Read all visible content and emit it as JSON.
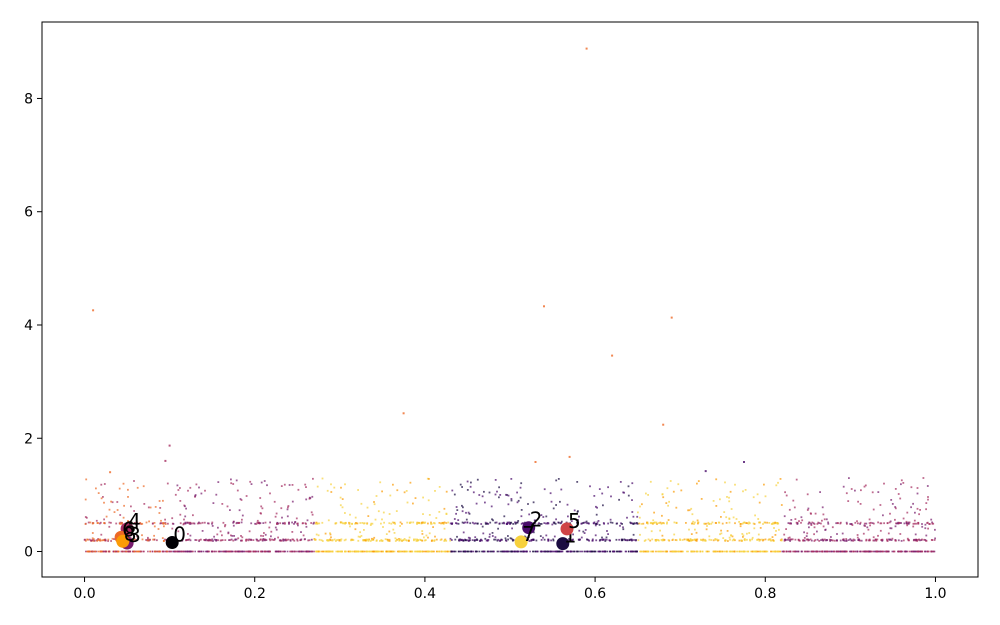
{
  "chart_data": {
    "type": "scatter",
    "title": "",
    "xlabel": "",
    "ylabel": "",
    "xlim": [
      -0.05,
      1.05
    ],
    "ylim": [
      -0.45,
      9.35
    ],
    "xticks": [
      0.0,
      0.2,
      0.4,
      0.6,
      0.8,
      1.0
    ],
    "xtick_labels": [
      "0.0",
      "0.2",
      "0.4",
      "0.6",
      "0.8",
      "1.0"
    ],
    "yticks": [
      0,
      2,
      4,
      6,
      8
    ],
    "ytick_labels": [
      "0",
      "2",
      "4",
      "6",
      "8"
    ],
    "grid": false,
    "legend": "none",
    "colormap": "inferno",
    "cluster_colors": [
      "#000004",
      "#1b0c41",
      "#4a0c6b",
      "#781c6d",
      "#a52c60",
      "#cf4446",
      "#ed6925",
      "#fb9b06",
      "#f7d13d"
    ],
    "background_points": {
      "description_count": 3000,
      "y_bands": [
        0.0,
        0.2,
        0.5
      ],
      "outliers": [
        {
          "x": 0.59,
          "y": 8.88,
          "c": "#ed6925"
        },
        {
          "x": 0.01,
          "y": 4.26,
          "c": "#ed6925"
        },
        {
          "x": 0.54,
          "y": 4.33,
          "c": "#ed6925"
        },
        {
          "x": 0.69,
          "y": 4.13,
          "c": "#ed6925"
        },
        {
          "x": 0.62,
          "y": 3.46,
          "c": "#ed6925"
        },
        {
          "x": 0.375,
          "y": 2.44,
          "c": "#ed6925"
        },
        {
          "x": 0.68,
          "y": 2.24,
          "c": "#ed6925"
        },
        {
          "x": 0.1,
          "y": 1.87,
          "c": "#a52c60"
        },
        {
          "x": 0.095,
          "y": 1.6,
          "c": "#a52c60"
        },
        {
          "x": 0.57,
          "y": 1.67,
          "c": "#ed6925"
        },
        {
          "x": 0.775,
          "y": 1.58,
          "c": "#4a0c6b"
        },
        {
          "x": 0.53,
          "y": 1.58,
          "c": "#ed6925"
        },
        {
          "x": 0.03,
          "y": 1.4,
          "c": "#ed6925"
        },
        {
          "x": 0.73,
          "y": 1.42,
          "c": "#4a0c6b"
        }
      ]
    },
    "centroids": [
      {
        "label": "0",
        "x": 0.103,
        "y": 0.16,
        "color": "#000004"
      },
      {
        "label": "1",
        "x": 0.562,
        "y": 0.14,
        "color": "#1b0c41"
      },
      {
        "label": "2",
        "x": 0.522,
        "y": 0.42,
        "color": "#4a0c6b"
      },
      {
        "label": "3",
        "x": 0.05,
        "y": 0.15,
        "color": "#781c6d"
      },
      {
        "label": "4",
        "x": 0.05,
        "y": 0.4,
        "color": "#a52c60"
      },
      {
        "label": "5",
        "x": 0.567,
        "y": 0.4,
        "color": "#cf4446"
      },
      {
        "label": "6",
        "x": 0.043,
        "y": 0.25,
        "color": "#ed6925"
      },
      {
        "label": "7",
        "x": 0.513,
        "y": 0.17,
        "color": "#f7d13d"
      },
      {
        "label": "8",
        "x": 0.045,
        "y": 0.18,
        "color": "#fb9b06"
      }
    ]
  }
}
